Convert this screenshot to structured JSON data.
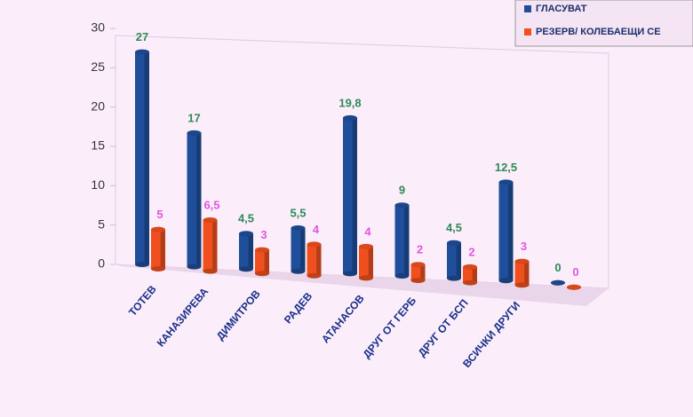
{
  "chart_data": {
    "type": "bar",
    "categories": [
      "ТОТЕВ",
      "КАНАЗИРЕВА",
      "ДИМИТРОВ",
      "РАДЕВ",
      "АТАНАСОВ",
      "ДРУГ ОТ ГЕРБ",
      "ДРУГ ОТ БСП",
      "ВСИЧКИ ДРУГИ",
      null
    ],
    "series": [
      {
        "name": "ГЛАСУВАТ",
        "color": "#1f4e9a",
        "label_color": "#2e8b57",
        "values": [
          27,
          17,
          4.5,
          5.5,
          19.8,
          9,
          4.5,
          12.5,
          0
        ],
        "value_labels": [
          "27",
          "17",
          "4,5",
          "5,5",
          "19,8",
          "9",
          "4,5",
          "12,5",
          "0"
        ]
      },
      {
        "name": "РЕЗЕРВ/ КОЛЕБАЕЩИ СЕ",
        "color": "#f0501e",
        "label_color": "#e055e0",
        "values": [
          5,
          6.5,
          3,
          4,
          4,
          2,
          2,
          3,
          0
        ],
        "value_labels": [
          "5",
          "6,5",
          "3",
          "4",
          "4",
          "2",
          "2",
          "3",
          "0"
        ]
      }
    ],
    "ylim": [
      0,
      30
    ],
    "yticks": [
      0,
      5,
      10,
      15,
      20,
      25,
      30
    ],
    "grid": false,
    "legend": "top-right"
  }
}
